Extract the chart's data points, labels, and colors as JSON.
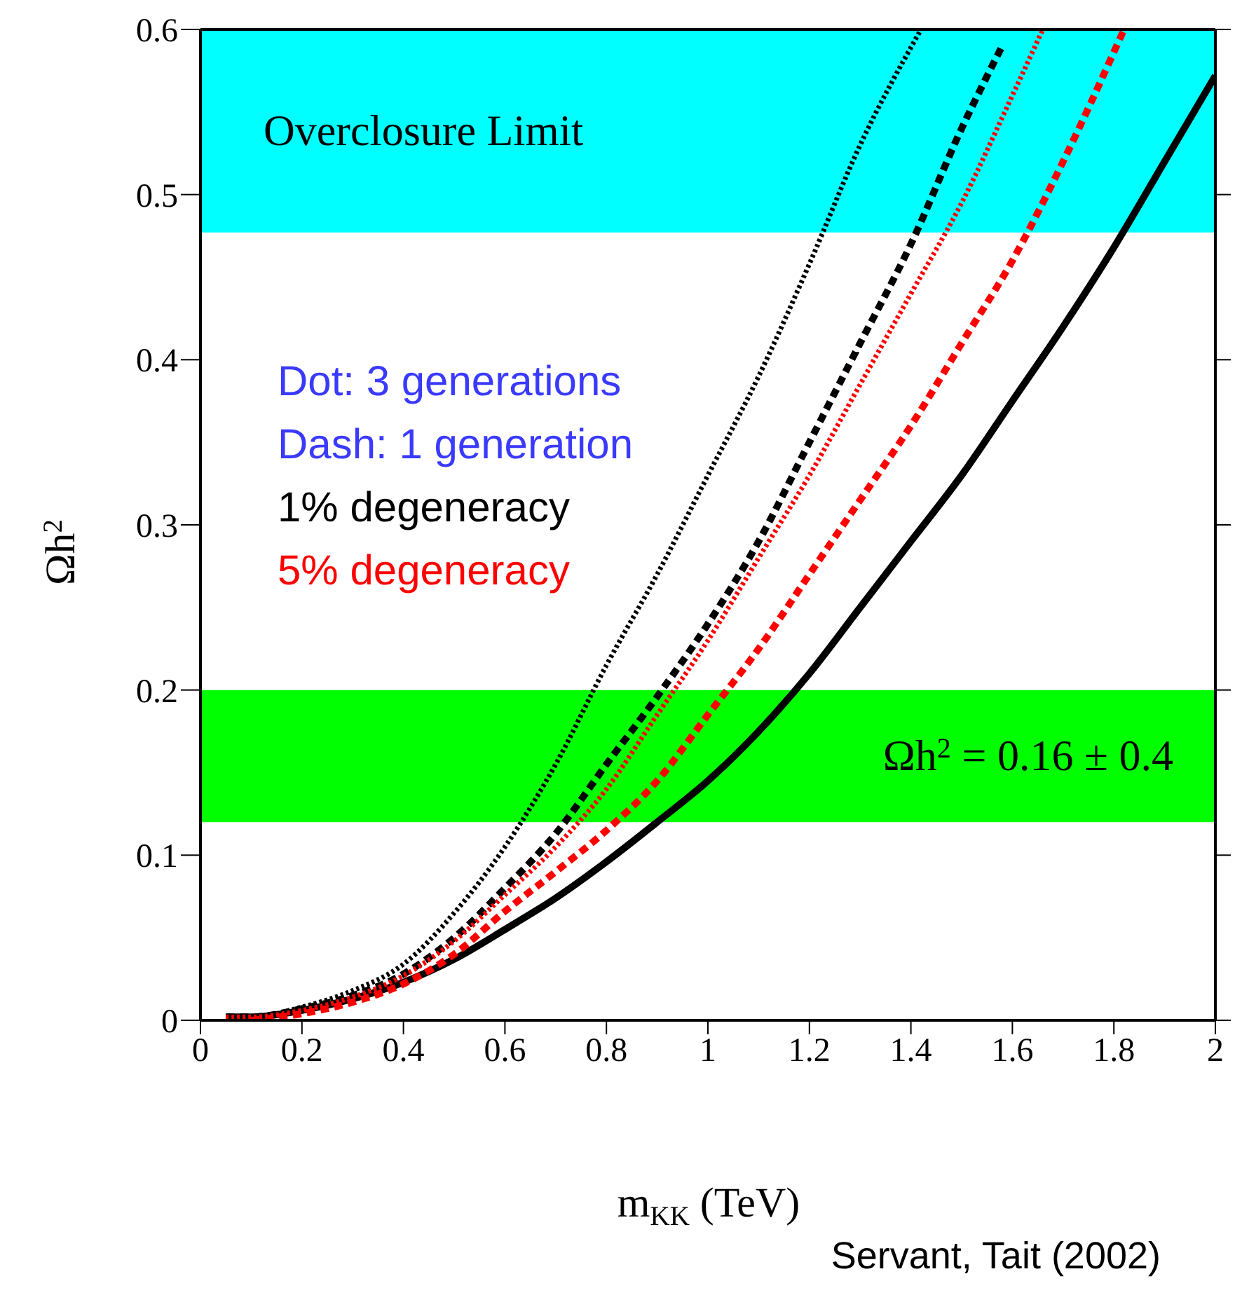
{
  "chart_data": {
    "type": "line",
    "xlabel": "m$_{KK}$ (TeV)",
    "ylabel": "Ωh$^{2}$",
    "xlim": [
      0,
      2
    ],
    "xticks": [
      0,
      0.2,
      0.4,
      0.6,
      0.8,
      1,
      1.2,
      1.4,
      1.6,
      1.8,
      2
    ],
    "ylim": [
      0,
      0.6
    ],
    "yticks": [
      0,
      0.1,
      0.2,
      0.3,
      0.4,
      0.5,
      0.6
    ],
    "marker": "none",
    "bands": [
      {
        "axis": "y",
        "from": 0.477,
        "to": 0.6,
        "label": "Overclosure Limit",
        "color": "#00ffff"
      },
      {
        "axis": "y",
        "from": 0.12,
        "to": 0.2,
        "label": "Ωh$^{2}$ = 0.16 ± 0.4",
        "color": "#00ff00"
      }
    ],
    "series": [
      {
        "color": "#000000",
        "line_style": "dotted",
        "x": [
          0.05,
          0.1,
          0.2,
          0.3,
          0.4,
          0.5,
          0.6,
          0.7,
          0.8,
          0.9,
          1.0,
          1.1,
          1.2,
          1.3,
          1.42
        ],
        "values": [
          0.002,
          0.002,
          0.008,
          0.018,
          0.034,
          0.065,
          0.105,
          0.155,
          0.215,
          0.27,
          0.33,
          0.39,
          0.458,
          0.53,
          0.6
        ]
      },
      {
        "color": "#000000",
        "line_style": "dashed",
        "x": [
          0.05,
          0.1,
          0.2,
          0.3,
          0.4,
          0.5,
          0.6,
          0.7,
          0.8,
          0.9,
          1.0,
          1.1,
          1.2,
          1.3,
          1.4,
          1.5,
          1.58
        ],
        "values": [
          0.002,
          0.002,
          0.007,
          0.015,
          0.028,
          0.05,
          0.08,
          0.113,
          0.155,
          0.196,
          0.24,
          0.29,
          0.35,
          0.41,
          0.47,
          0.54,
          0.59
        ]
      },
      {
        "color": "#ff0000",
        "line_style": "dotted",
        "x": [
          0.05,
          0.1,
          0.2,
          0.3,
          0.4,
          0.5,
          0.6,
          0.7,
          0.8,
          0.9,
          1.0,
          1.1,
          1.2,
          1.3,
          1.4,
          1.5,
          1.6,
          1.66
        ],
        "values": [
          0.002,
          0.002,
          0.006,
          0.014,
          0.027,
          0.048,
          0.076,
          0.105,
          0.14,
          0.185,
          0.23,
          0.28,
          0.33,
          0.385,
          0.44,
          0.495,
          0.56,
          0.6
        ]
      },
      {
        "color": "#ff0000",
        "line_style": "dashed",
        "x": [
          0.1,
          0.2,
          0.3,
          0.4,
          0.5,
          0.6,
          0.7,
          0.8,
          0.9,
          1.0,
          1.1,
          1.2,
          1.3,
          1.4,
          1.5,
          1.6,
          1.7,
          1.82
        ],
        "values": [
          0.0,
          0.004,
          0.011,
          0.022,
          0.04,
          0.066,
          0.09,
          0.115,
          0.145,
          0.185,
          0.225,
          0.27,
          0.315,
          0.36,
          0.41,
          0.46,
          0.52,
          0.6
        ]
      },
      {
        "color": "#000000",
        "line_style": "solid",
        "x": [
          0.05,
          0.1,
          0.2,
          0.3,
          0.4,
          0.5,
          0.6,
          0.7,
          0.8,
          0.9,
          1.0,
          1.1,
          1.2,
          1.3,
          1.4,
          1.5,
          1.6,
          1.7,
          1.8,
          1.9,
          2.0
        ],
        "values": [
          0.002,
          0.002,
          0.006,
          0.013,
          0.023,
          0.037,
          0.055,
          0.074,
          0.096,
          0.12,
          0.145,
          0.175,
          0.21,
          0.25,
          0.29,
          0.33,
          0.375,
          0.42,
          0.468,
          0.52,
          0.572
        ]
      }
    ],
    "annotations": [
      "Dot: 3 generations",
      "Dash: 1 generation",
      "1% degeneracy",
      "5% degeneracy",
      "Servant, Tait (2002)"
    ]
  }
}
